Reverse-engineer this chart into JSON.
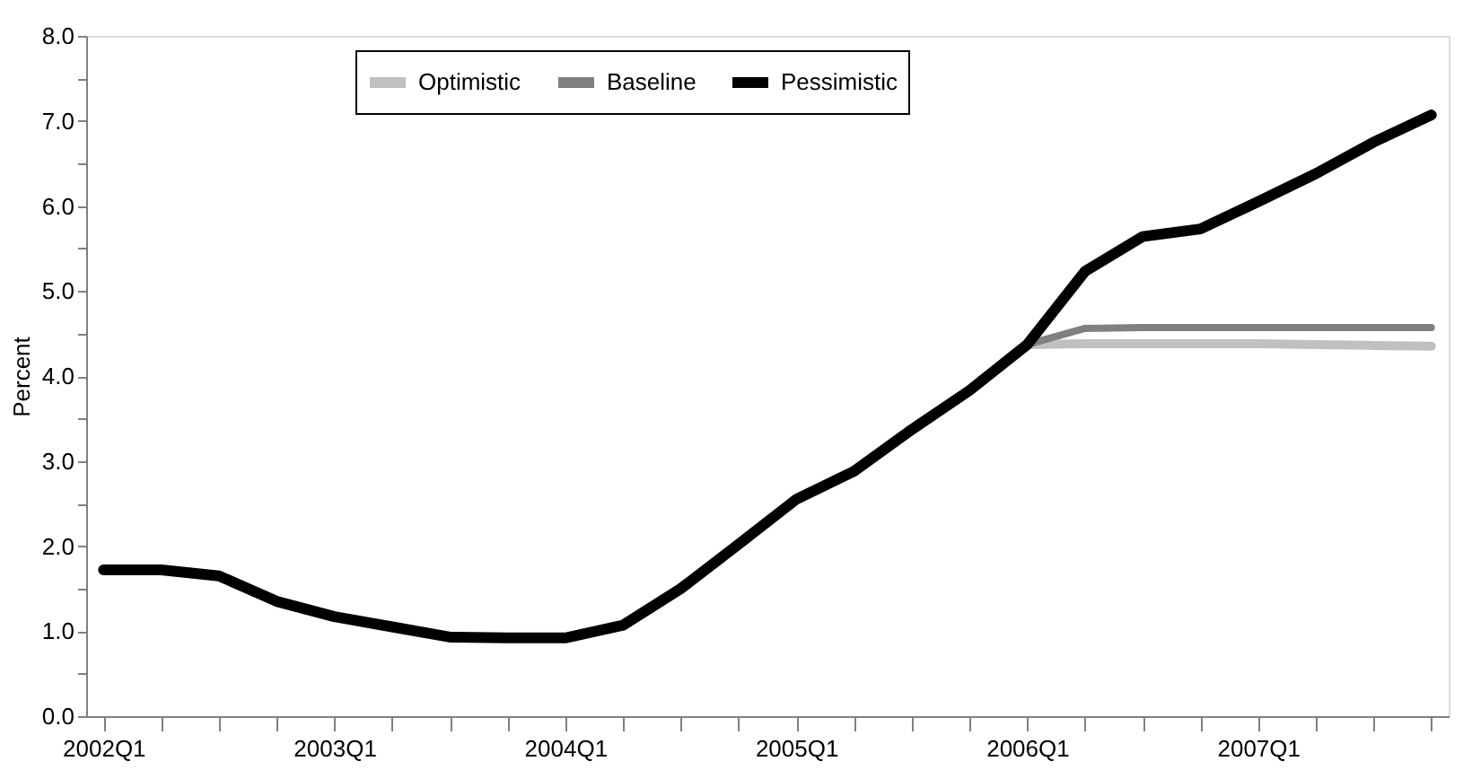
{
  "chart_data": {
    "type": "line",
    "ylabel": "Percent",
    "categories": [
      "2002Q1",
      null,
      null,
      null,
      "2003Q1",
      null,
      null,
      null,
      "2004Q1",
      null,
      null,
      null,
      "2005Q1",
      null,
      null,
      null,
      "2006Q1",
      null,
      null,
      null,
      "2007Q1",
      null,
      null,
      null
    ],
    "series": [
      {
        "name": "Optimistic",
        "color": "#c0c0c0",
        "values": [
          null,
          null,
          null,
          null,
          null,
          null,
          null,
          null,
          null,
          null,
          null,
          null,
          null,
          null,
          null,
          null,
          4.37,
          4.38,
          4.38,
          4.38,
          4.38,
          4.37,
          4.36,
          4.35
        ]
      },
      {
        "name": "Baseline",
        "color": "#808080",
        "values": [
          null,
          null,
          null,
          null,
          null,
          null,
          null,
          null,
          null,
          null,
          null,
          null,
          null,
          null,
          null,
          null,
          4.37,
          4.56,
          4.57,
          4.57,
          4.57,
          4.57,
          4.57,
          4.57
        ]
      },
      {
        "name": "Pessimistic",
        "color": "#000000",
        "values": [
          1.72,
          1.72,
          1.65,
          1.35,
          1.17,
          1.05,
          0.93,
          0.92,
          0.92,
          1.07,
          1.5,
          2.02,
          2.55,
          2.88,
          3.37,
          3.83,
          4.37,
          5.23,
          5.64,
          5.73,
          6.05,
          6.38,
          6.75,
          7.07
        ]
      }
    ],
    "ylim": [
      0,
      8
    ],
    "yticks": [
      {
        "value": 0,
        "label": "0.0"
      },
      {
        "value": 0.5,
        "label": null
      },
      {
        "value": 1,
        "label": "1.0"
      },
      {
        "value": 1.5,
        "label": null
      },
      {
        "value": 2,
        "label": "2.0"
      },
      {
        "value": 2.5,
        "label": null
      },
      {
        "value": 3,
        "label": "3.0"
      },
      {
        "value": 3.5,
        "label": null
      },
      {
        "value": 4,
        "label": "4.0"
      },
      {
        "value": 4.5,
        "label": null
      },
      {
        "value": 5,
        "label": "5.0"
      },
      {
        "value": 5.5,
        "label": null
      },
      {
        "value": 6,
        "label": "6.0"
      },
      {
        "value": 6.5,
        "label": null
      },
      {
        "value": 7,
        "label": "7.0"
      },
      {
        "value": 7.5,
        "label": null
      },
      {
        "value": 8,
        "label": "8.0"
      }
    ],
    "grid": false,
    "legend": "top",
    "marker": "none",
    "line_style": "solid"
  }
}
